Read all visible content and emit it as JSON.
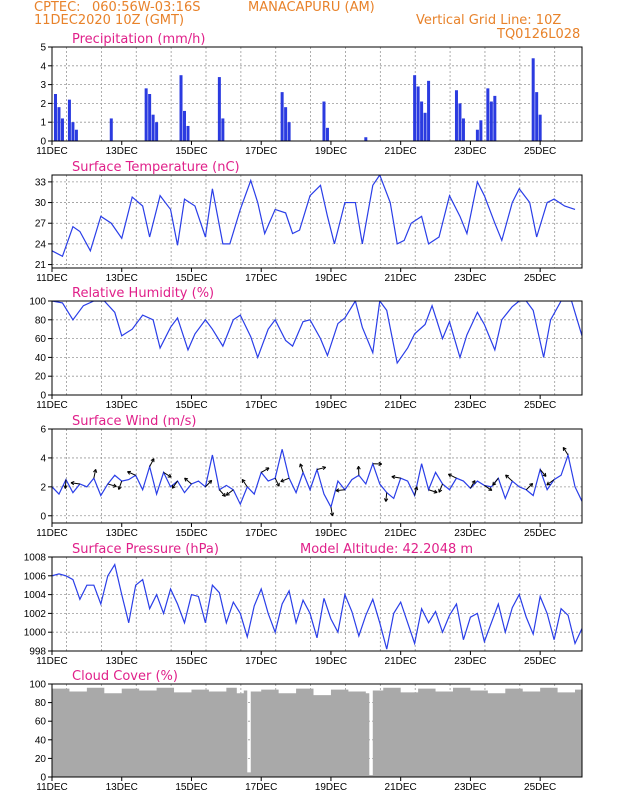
{
  "header": {
    "source": "CPTEC:",
    "coords": "060:56W-03:16S",
    "location": "MANACAPURU (AM)",
    "datetime": "11DEC2020 10Z (GMT)",
    "grid_note": "Vertical Grid Line: 10Z",
    "grid_code": "TQ0126L028"
  },
  "x_axis": {
    "tick_labels": [
      "11DEC",
      "13DEC",
      "15DEC",
      "17DEC",
      "19DEC",
      "21DEC",
      "23DEC",
      "25DEC"
    ],
    "start_day": 11,
    "end_day": 26.2
  },
  "colors": {
    "line": "#2a3ee8",
    "bars": "#2b3be0",
    "cloud": "#a9a9a9",
    "titles": "#e0208a",
    "header": "#e8822a"
  },
  "chart_data": [
    {
      "type": "bar",
      "title": "Precipitation (mm/h)",
      "ylim": [
        0,
        5
      ],
      "yticks": [
        "0",
        "1",
        "2",
        "3",
        "4",
        "5"
      ],
      "x_unit": "day of December (fractional)",
      "x": [
        11.1,
        11.2,
        11.3,
        11.5,
        11.6,
        11.7,
        12.7,
        13.7,
        13.8,
        13.9,
        14.0,
        14.7,
        14.8,
        14.9,
        15.8,
        15.9,
        17.6,
        17.7,
        17.8,
        18.8,
        18.9,
        20.0,
        21.4,
        21.5,
        21.6,
        21.7,
        21.8,
        22.6,
        22.7,
        22.8,
        23.2,
        23.3,
        23.5,
        23.6,
        23.7,
        24.8,
        24.9,
        25.0
      ],
      "values": [
        2.5,
        1.8,
        1.2,
        2.2,
        1.0,
        0.6,
        1.2,
        2.8,
        2.5,
        1.4,
        1.0,
        3.5,
        1.6,
        0.8,
        3.4,
        1.2,
        2.6,
        1.8,
        1.0,
        2.1,
        0.7,
        0.2,
        3.5,
        2.9,
        2.1,
        1.5,
        3.2,
        2.7,
        2.0,
        1.2,
        0.6,
        1.1,
        2.8,
        2.1,
        2.4,
        4.4,
        2.6,
        1.4
      ]
    },
    {
      "type": "line",
      "title": "Surface Temperature (nC)",
      "ylim": [
        20.5,
        34
      ],
      "yticks": [
        "21",
        "24",
        "27",
        "30",
        "33"
      ],
      "x": [
        11.0,
        11.3,
        11.6,
        11.8,
        12.1,
        12.4,
        12.7,
        13.0,
        13.3,
        13.6,
        13.8,
        14.1,
        14.4,
        14.6,
        14.8,
        15.1,
        15.4,
        15.6,
        15.9,
        16.1,
        16.4,
        16.7,
        16.9,
        17.1,
        17.4,
        17.7,
        17.9,
        18.1,
        18.4,
        18.7,
        18.9,
        19.1,
        19.4,
        19.7,
        19.9,
        20.2,
        20.4,
        20.7,
        20.9,
        21.1,
        21.3,
        21.6,
        21.8,
        22.1,
        22.4,
        22.7,
        22.9,
        23.2,
        23.4,
        23.7,
        23.9,
        24.2,
        24.4,
        24.7,
        24.9,
        25.2,
        25.4,
        25.7,
        26.0
      ],
      "values": [
        23,
        22.2,
        26.5,
        25.8,
        23,
        28,
        27,
        24.8,
        30.8,
        29.5,
        25,
        31,
        29,
        23.8,
        30.5,
        29.5,
        25,
        32,
        24,
        24,
        29,
        33.2,
        30,
        25.5,
        29,
        28.5,
        25.5,
        26,
        31,
        32.5,
        28,
        24,
        30,
        30,
        24,
        32.5,
        34,
        30,
        24,
        24.5,
        27,
        28,
        24,
        25,
        31,
        28,
        25.5,
        33,
        31,
        27,
        24.5,
        30,
        32,
        30,
        25,
        30,
        30.5,
        29.5,
        29
      ]
    },
    {
      "type": "line",
      "title": "Relative Humidity (%)",
      "ylim": [
        0,
        100
      ],
      "yticks": [
        "0",
        "20",
        "40",
        "60",
        "80",
        "100"
      ],
      "x": [
        11.0,
        11.3,
        11.6,
        11.9,
        12.2,
        12.5,
        12.8,
        13.0,
        13.3,
        13.6,
        13.9,
        14.1,
        14.4,
        14.6,
        14.9,
        15.1,
        15.4,
        15.6,
        15.9,
        16.2,
        16.4,
        16.7,
        16.9,
        17.2,
        17.4,
        17.7,
        17.9,
        18.2,
        18.4,
        18.7,
        18.9,
        19.2,
        19.4,
        19.7,
        19.9,
        20.2,
        20.4,
        20.6,
        20.9,
        21.2,
        21.4,
        21.7,
        21.9,
        22.2,
        22.4,
        22.7,
        22.9,
        23.2,
        23.4,
        23.7,
        23.9,
        24.2,
        24.4,
        24.6,
        24.8,
        25.1,
        25.3,
        25.6,
        25.9,
        26.2
      ],
      "values": [
        100,
        98,
        80,
        95,
        100,
        100,
        88,
        63,
        70,
        85,
        80,
        50,
        72,
        82,
        48,
        65,
        80,
        70,
        52,
        80,
        85,
        62,
        40,
        70,
        80,
        58,
        52,
        78,
        80,
        60,
        42,
        76,
        82,
        100,
        72,
        45,
        100,
        90,
        34,
        50,
        65,
        75,
        95,
        60,
        78,
        40,
        64,
        88,
        75,
        48,
        80,
        94,
        100,
        100,
        90,
        40,
        80,
        100,
        100,
        63
      ]
    },
    {
      "type": "line",
      "title": "Surface Wind (m/s)",
      "ylim": [
        -0.5,
        6
      ],
      "yticks": [
        "0",
        "2",
        "4",
        "6"
      ],
      "x": [
        11.0,
        11.2,
        11.4,
        11.6,
        11.8,
        12.0,
        12.2,
        12.4,
        12.6,
        12.8,
        13.0,
        13.2,
        13.4,
        13.6,
        13.8,
        14.0,
        14.2,
        14.4,
        14.6,
        14.8,
        15.0,
        15.2,
        15.4,
        15.6,
        15.8,
        16.0,
        16.2,
        16.4,
        16.6,
        16.8,
        17.0,
        17.2,
        17.4,
        17.6,
        17.8,
        18.0,
        18.2,
        18.4,
        18.6,
        18.8,
        19.0,
        19.2,
        19.4,
        19.6,
        19.8,
        20.0,
        20.2,
        20.4,
        20.6,
        20.8,
        21.0,
        21.2,
        21.4,
        21.6,
        21.8,
        22.0,
        22.2,
        22.4,
        22.6,
        22.8,
        23.0,
        23.2,
        23.4,
        23.6,
        23.8,
        24.0,
        24.2,
        24.4,
        24.6,
        24.8,
        25.0,
        25.2,
        25.4,
        25.6,
        25.8,
        26.0,
        26.2
      ],
      "values": [
        2,
        1.5,
        2.5,
        1.6,
        2.2,
        2,
        2.6,
        1.4,
        2.2,
        2.8,
        2.4,
        2.5,
        2.8,
        1.8,
        3.4,
        1.5,
        3,
        2,
        2.4,
        1.6,
        2.2,
        2.4,
        2,
        4.2,
        1.8,
        2.1,
        1.8,
        0.8,
        2,
        1.5,
        3,
        2.4,
        2.6,
        4.6,
        2.6,
        1.6,
        3,
        1.8,
        3.2,
        1.5,
        0.6,
        2.4,
        1.8,
        2.5,
        2.8,
        2.2,
        3.6,
        2.2,
        1.6,
        1.2,
        2.6,
        2.4,
        1.4,
        3.6,
        1.8,
        3,
        2.2,
        1.8,
        2.6,
        2.4,
        1.9,
        2.4,
        2.1,
        2,
        2.6,
        1.2,
        2.4,
        2,
        1.8,
        1.4,
        3.2,
        1.8,
        2.5,
        2.8,
        4.2,
        2,
        1
      ]
    },
    {
      "type": "line",
      "title": "Surface Pressure (hPa)",
      "annotation": "Model Altitude: 42.2048 m",
      "ylim": [
        998,
        1008
      ],
      "yticks": [
        "998",
        "1000",
        "1002",
        "1004",
        "1006",
        "1008"
      ],
      "x": [
        11.0,
        11.2,
        11.4,
        11.6,
        11.8,
        12.0,
        12.2,
        12.4,
        12.6,
        12.8,
        13.0,
        13.2,
        13.4,
        13.6,
        13.8,
        14.0,
        14.2,
        14.4,
        14.6,
        14.8,
        15.0,
        15.2,
        15.4,
        15.6,
        15.8,
        16.0,
        16.2,
        16.4,
        16.6,
        16.8,
        17.0,
        17.2,
        17.4,
        17.6,
        17.8,
        18.0,
        18.2,
        18.4,
        18.6,
        18.8,
        19.0,
        19.2,
        19.4,
        19.6,
        19.8,
        20.0,
        20.2,
        20.4,
        20.6,
        20.8,
        21.0,
        21.2,
        21.4,
        21.6,
        21.8,
        22.0,
        22.2,
        22.4,
        22.6,
        22.8,
        23.0,
        23.2,
        23.4,
        23.6,
        23.8,
        24.0,
        24.2,
        24.4,
        24.6,
        24.8,
        25.0,
        25.2,
        25.4,
        25.6,
        25.8,
        26.0,
        26.2
      ],
      "values": [
        1006,
        1006.2,
        1006,
        1005.6,
        1003.5,
        1005,
        1005,
        1003,
        1006,
        1007.2,
        1004,
        1001,
        1005,
        1005.6,
        1002.5,
        1004,
        1002,
        1004.6,
        1003,
        1001,
        1004,
        1003.8,
        1001,
        1005,
        1004.2,
        1001,
        1003.2,
        1002,
        999.5,
        1002.8,
        1004.6,
        1002,
        1000,
        1003,
        1004.4,
        1001,
        1003.4,
        1002,
        999.4,
        1003.6,
        1001.4,
        1000,
        1004,
        1002.2,
        999.6,
        1001.8,
        1003.5,
        1001,
        998.2,
        1002,
        1003.2,
        1001,
        998.8,
        1002.5,
        1001,
        1002.2,
        1000,
        1001.8,
        1003,
        999.2,
        1001.6,
        1002,
        999,
        1001,
        1003,
        1000,
        1002.6,
        1004,
        1001.6,
        999.8,
        1003.8,
        1002,
        999.2,
        1002.5,
        1001.8,
        998.8,
        1000.4
      ]
    },
    {
      "type": "area",
      "title": "Cloud Cover (%)",
      "ylim": [
        0,
        100
      ],
      "yticks": [
        "0",
        "20",
        "40",
        "60",
        "80",
        "100"
      ],
      "x": [
        11.0,
        11.5,
        12.0,
        12.5,
        13.0,
        13.5,
        14.0,
        14.5,
        15.0,
        15.5,
        16.0,
        16.3,
        16.5,
        16.6,
        16.7,
        17.0,
        17.5,
        18.0,
        18.5,
        19.0,
        19.5,
        20.0,
        20.1,
        20.2,
        20.5,
        21.0,
        21.5,
        22.0,
        22.5,
        23.0,
        23.5,
        24.0,
        24.5,
        25.0,
        25.5,
        26.0,
        26.2
      ],
      "values": [
        95,
        92,
        96,
        90,
        95,
        93,
        96,
        91,
        94,
        92,
        96,
        90,
        93,
        5,
        92,
        94,
        90,
        95,
        88,
        94,
        92,
        90,
        2,
        93,
        96,
        91,
        95,
        92,
        96,
        93,
        90,
        95,
        92,
        96,
        91,
        94,
        92
      ]
    }
  ]
}
